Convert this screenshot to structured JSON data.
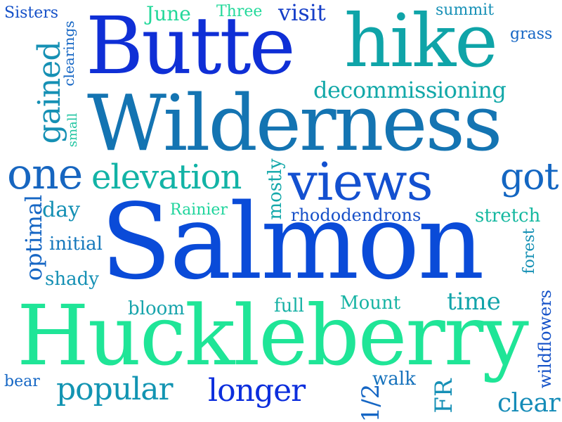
{
  "colors": {
    "blue": "#0a3fd9",
    "royal": "#1a52d6",
    "steel": "#1a72b8",
    "teal": "#0e9ab0",
    "aqua": "#12b8a6",
    "green": "#1fd990",
    "mint": "#20e59a"
  },
  "words": [
    {
      "id": "salmon",
      "text": "Salmon",
      "color": "#0a4bd8",
      "weight": 100
    },
    {
      "id": "huckleberry",
      "text": "Huckleberry",
      "color": "#1fe597",
      "weight": 95
    },
    {
      "id": "wilderness",
      "text": "Wilderness",
      "color": "#1474b2",
      "weight": 90
    },
    {
      "id": "butte",
      "text": "Butte",
      "color": "#0f2fd6",
      "weight": 85
    },
    {
      "id": "hike",
      "text": "hike",
      "color": "#0fa4a8",
      "weight": 80
    },
    {
      "id": "views",
      "text": "views",
      "color": "#1350d0",
      "weight": 60
    },
    {
      "id": "one",
      "text": "one",
      "color": "#1766c0",
      "weight": 55
    },
    {
      "id": "elevation",
      "text": "elevation",
      "color": "#12b3a6",
      "weight": 50
    },
    {
      "id": "got",
      "text": "got",
      "color": "#1366c2",
      "weight": 50
    },
    {
      "id": "gained",
      "text": "gained",
      "color": "#1590b4",
      "weight": 48
    },
    {
      "id": "decommissioning",
      "text": "decommissioning",
      "color": "#12a8a8",
      "weight": 45
    },
    {
      "id": "popular",
      "text": "popular",
      "color": "#1294b2",
      "weight": 45
    },
    {
      "id": "longer",
      "text": "longer",
      "color": "#0c2edd",
      "weight": 45
    },
    {
      "id": "clear",
      "text": "clear",
      "color": "#168cb8",
      "weight": 40
    },
    {
      "id": "time",
      "text": "time",
      "color": "#12a4aa",
      "weight": 38
    },
    {
      "id": "optimal",
      "text": "optimal",
      "color": "#1566c4",
      "weight": 38
    },
    {
      "id": "visit",
      "text": "visit",
      "color": "#163fc8",
      "weight": 36
    },
    {
      "id": "june",
      "text": "June",
      "color": "#22d89a",
      "weight": 34
    },
    {
      "id": "day",
      "text": "day",
      "color": "#1590b4",
      "weight": 34
    },
    {
      "id": "mostly",
      "text": "mostly",
      "color": "#14a8aa",
      "weight": 32
    },
    {
      "id": "rhododendrons",
      "text": "rhododendrons",
      "color": "#1850c8",
      "weight": 32
    },
    {
      "id": "stretch",
      "text": "stretch",
      "color": "#16b8a0",
      "weight": 30
    },
    {
      "id": "half",
      "text": "1/2",
      "color": "#1566c4",
      "weight": 30
    },
    {
      "id": "fr",
      "text": "FR",
      "color": "#1690b6",
      "weight": 30
    },
    {
      "id": "mount",
      "text": "Mount",
      "color": "#18b4a4",
      "weight": 28
    },
    {
      "id": "initial",
      "text": "initial",
      "color": "#1578bc",
      "weight": 28
    },
    {
      "id": "shady",
      "text": "shady",
      "color": "#1590b4",
      "weight": 28
    },
    {
      "id": "bloom",
      "text": "bloom",
      "color": "#17a4ac",
      "weight": 28
    },
    {
      "id": "full",
      "text": "full",
      "color": "#19b2a6",
      "weight": 28
    },
    {
      "id": "walk",
      "text": "walk",
      "color": "#1672bc",
      "weight": 28
    },
    {
      "id": "wildflowers",
      "text": "wildflowers",
      "color": "#1552c8",
      "weight": 26
    },
    {
      "id": "forest",
      "text": "forest",
      "color": "#1590b4",
      "weight": 24
    },
    {
      "id": "rainier",
      "text": "Rainier",
      "color": "#1fd49c",
      "weight": 24
    },
    {
      "id": "three",
      "text": "Three",
      "color": "#22d99a",
      "weight": 24
    },
    {
      "id": "summit",
      "text": "summit",
      "color": "#1690b6",
      "weight": 24
    },
    {
      "id": "grass",
      "text": "grass",
      "color": "#1566c4",
      "weight": 24
    },
    {
      "id": "sisters",
      "text": "Sisters",
      "color": "#1450c8",
      "weight": 24
    },
    {
      "id": "clearings",
      "text": "clearings",
      "color": "#1566c4",
      "weight": 24
    },
    {
      "id": "small",
      "text": "small",
      "color": "#1ec4a0",
      "weight": 22
    },
    {
      "id": "bear",
      "text": "bear",
      "color": "#1466c4",
      "weight": 22
    }
  ]
}
